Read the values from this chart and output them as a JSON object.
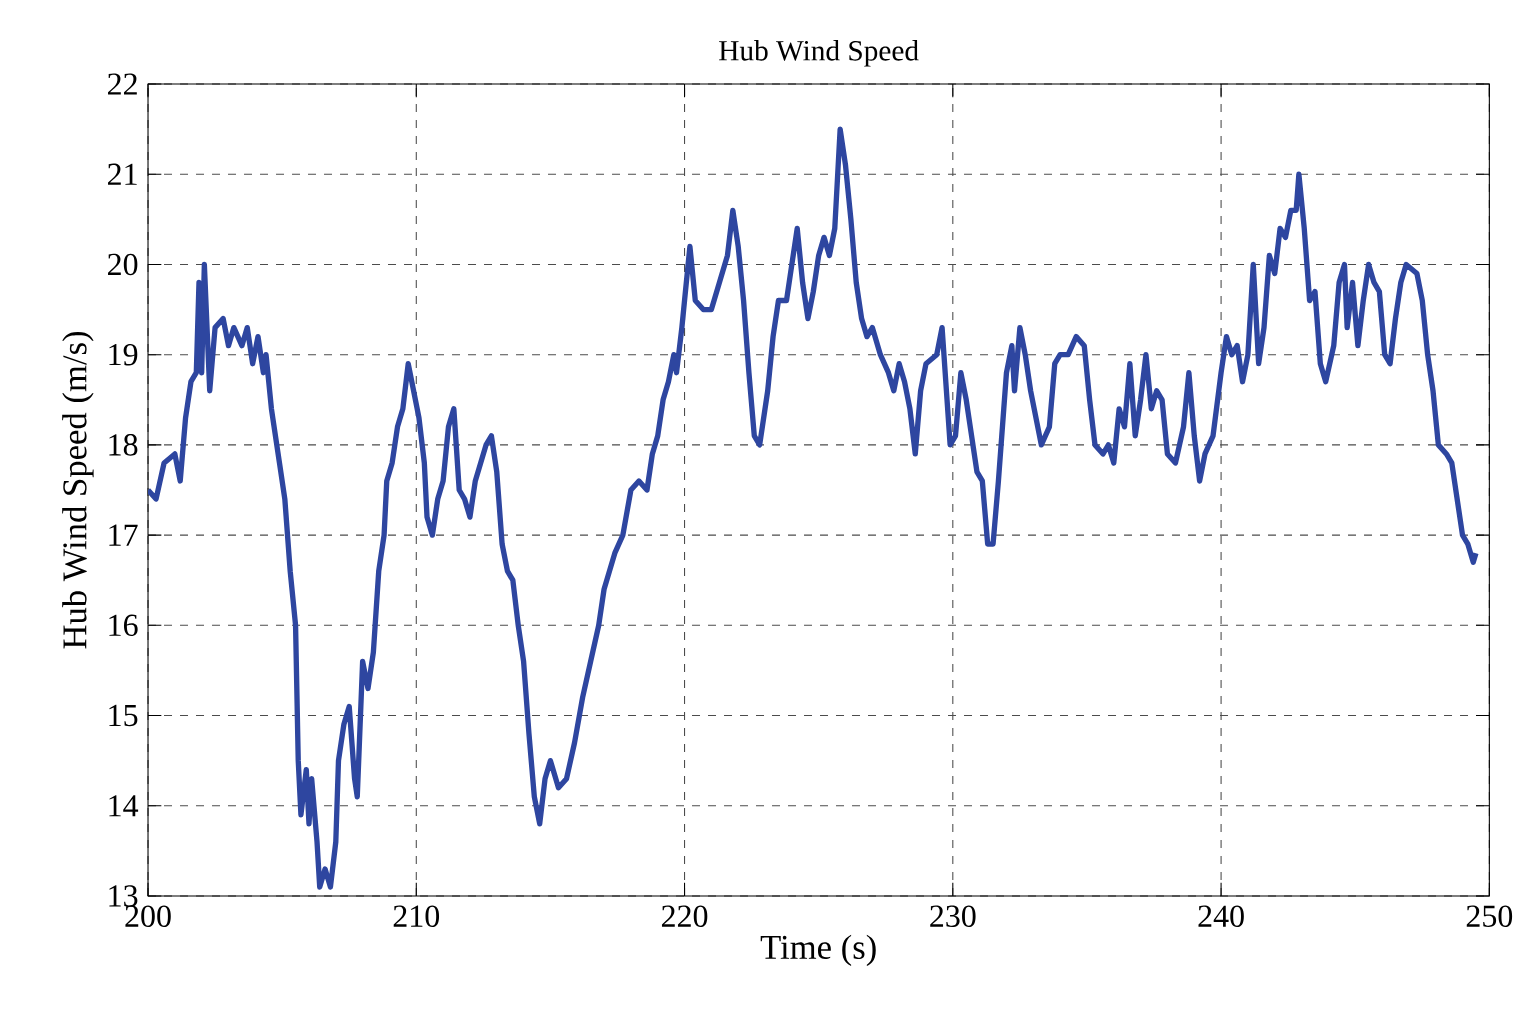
{
  "chart_data": {
    "type": "line",
    "title": "Hub Wind Speed",
    "xlabel": "Time (s)",
    "ylabel": "Hub Wind Speed (m/s)",
    "xlim": [
      200,
      250
    ],
    "ylim": [
      13,
      22
    ],
    "xticks": [
      200,
      210,
      220,
      230,
      240,
      250
    ],
    "yticks": [
      13,
      14,
      15,
      16,
      17,
      18,
      19,
      20,
      21,
      22
    ],
    "grid": true,
    "line_style": "solid",
    "series": [
      {
        "color": "#2e46a0",
        "x": [
          200.0,
          200.3,
          200.6,
          201.0,
          201.2,
          201.4,
          201.6,
          201.8,
          201.9,
          202.0,
          202.1,
          202.3,
          202.5,
          202.8,
          203.0,
          203.2,
          203.5,
          203.7,
          203.9,
          204.1,
          204.3,
          204.4,
          204.6,
          204.9,
          205.1,
          205.3,
          205.5,
          205.6,
          205.7,
          205.9,
          206.0,
          206.1,
          206.3,
          206.4,
          206.6,
          206.8,
          207.0,
          207.1,
          207.3,
          207.5,
          207.7,
          207.8,
          208.0,
          208.2,
          208.4,
          208.6,
          208.8,
          208.9,
          209.1,
          209.3,
          209.5,
          209.7,
          209.9,
          210.1,
          210.3,
          210.4,
          210.6,
          210.8,
          211.0,
          211.2,
          211.4,
          211.6,
          211.8,
          212.0,
          212.2,
          212.4,
          212.6,
          212.8,
          213.0,
          213.2,
          213.4,
          213.6,
          213.8,
          214.0,
          214.2,
          214.4,
          214.6,
          214.8,
          215.0,
          215.3,
          215.6,
          215.9,
          216.2,
          216.5,
          216.8,
          217.0,
          217.4,
          217.7,
          218.0,
          218.3,
          218.6,
          218.8,
          219.0,
          219.2,
          219.4,
          219.6,
          219.7,
          219.9,
          220.0,
          220.2,
          220.4,
          220.7,
          221.0,
          221.3,
          221.6,
          221.8,
          222.0,
          222.2,
          222.4,
          222.6,
          222.8,
          223.1,
          223.3,
          223.5,
          223.8,
          224.0,
          224.2,
          224.4,
          224.6,
          224.8,
          225.0,
          225.2,
          225.4,
          225.6,
          225.8,
          226.0,
          226.2,
          226.4,
          226.6,
          226.8,
          227.0,
          227.3,
          227.6,
          227.8,
          228.0,
          228.2,
          228.4,
          228.6,
          228.8,
          229.0,
          229.4,
          229.6,
          229.9,
          230.1,
          230.3,
          230.5,
          230.7,
          230.9,
          231.1,
          231.3,
          231.5,
          231.7,
          231.9,
          232.0,
          232.2,
          232.3,
          232.5,
          232.7,
          232.9,
          233.1,
          233.3,
          233.6,
          233.8,
          234.0,
          234.3,
          234.6,
          234.9,
          235.1,
          235.3,
          235.6,
          235.8,
          236.0,
          236.2,
          236.4,
          236.6,
          236.8,
          237.0,
          237.2,
          237.4,
          237.6,
          237.8,
          238.0,
          238.3,
          238.6,
          238.8,
          239.0,
          239.2,
          239.4,
          239.7,
          240.0,
          240.2,
          240.4,
          240.6,
          240.8,
          241.0,
          241.2,
          241.4,
          241.6,
          241.8,
          242.0,
          242.2,
          242.4,
          242.6,
          242.8,
          242.9,
          243.1,
          243.3,
          243.5,
          243.7,
          243.9,
          244.2,
          244.4,
          244.6,
          244.7,
          244.9,
          245.1,
          245.3,
          245.5,
          245.7,
          245.9,
          246.1,
          246.3,
          246.5,
          246.7,
          246.9,
          247.3,
          247.5,
          247.7,
          247.9,
          248.1,
          248.4,
          248.6,
          248.8,
          249.0,
          249.2,
          249.4,
          249.5
        ],
        "values": [
          17.5,
          17.4,
          17.8,
          17.9,
          17.6,
          18.3,
          18.7,
          18.8,
          19.8,
          18.8,
          20.0,
          18.6,
          19.3,
          19.4,
          19.1,
          19.3,
          19.1,
          19.3,
          18.9,
          19.2,
          18.8,
          19.0,
          18.4,
          17.8,
          17.4,
          16.6,
          16.0,
          14.5,
          13.9,
          14.4,
          13.8,
          14.3,
          13.6,
          13.1,
          13.3,
          13.1,
          13.6,
          14.5,
          14.9,
          15.1,
          14.3,
          14.1,
          15.6,
          15.3,
          15.7,
          16.6,
          17.0,
          17.6,
          17.8,
          18.2,
          18.4,
          18.9,
          18.6,
          18.3,
          17.8,
          17.2,
          17.0,
          17.4,
          17.6,
          18.2,
          18.4,
          17.5,
          17.4,
          17.2,
          17.6,
          17.8,
          18.0,
          18.1,
          17.7,
          16.9,
          16.6,
          16.5,
          16.0,
          15.6,
          14.8,
          14.1,
          13.8,
          14.3,
          14.5,
          14.2,
          14.3,
          14.7,
          15.2,
          15.6,
          16.0,
          16.4,
          16.8,
          17.0,
          17.5,
          17.6,
          17.5,
          17.9,
          18.1,
          18.5,
          18.7,
          19.0,
          18.8,
          19.3,
          19.6,
          20.2,
          19.6,
          19.5,
          19.5,
          19.8,
          20.1,
          20.6,
          20.2,
          19.6,
          18.8,
          18.1,
          18.0,
          18.6,
          19.2,
          19.6,
          19.6,
          20.0,
          20.4,
          19.8,
          19.4,
          19.7,
          20.1,
          20.3,
          20.1,
          20.4,
          21.5,
          21.1,
          20.5,
          19.8,
          19.4,
          19.2,
          19.3,
          19.0,
          18.8,
          18.6,
          18.9,
          18.7,
          18.4,
          17.9,
          18.6,
          18.9,
          19.0,
          19.3,
          18.0,
          18.1,
          18.8,
          18.5,
          18.1,
          17.7,
          17.6,
          16.9,
          16.9,
          17.6,
          18.4,
          18.8,
          19.1,
          18.6,
          19.3,
          19.0,
          18.6,
          18.3,
          18.0,
          18.2,
          18.9,
          19.0,
          19.0,
          19.2,
          19.1,
          18.5,
          18.0,
          17.9,
          18.0,
          17.8,
          18.4,
          18.2,
          18.9,
          18.1,
          18.5,
          19.0,
          18.4,
          18.6,
          18.5,
          17.9,
          17.8,
          18.2,
          18.8,
          18.1,
          17.6,
          17.9,
          18.1,
          18.8,
          19.2,
          19.0,
          19.1,
          18.7,
          19.0,
          20.0,
          18.9,
          19.3,
          20.1,
          19.9,
          20.4,
          20.3,
          20.6,
          20.6,
          21.0,
          20.4,
          19.6,
          19.7,
          18.9,
          18.7,
          19.1,
          19.8,
          20.0,
          19.3,
          19.8,
          19.1,
          19.6,
          20.0,
          19.8,
          19.7,
          19.0,
          18.9,
          19.4,
          19.8,
          20.0,
          19.9,
          19.6,
          19.0,
          18.6,
          18.0,
          17.9,
          17.8,
          17.4,
          17.0,
          16.9,
          16.7,
          16.8
        ]
      }
    ]
  }
}
